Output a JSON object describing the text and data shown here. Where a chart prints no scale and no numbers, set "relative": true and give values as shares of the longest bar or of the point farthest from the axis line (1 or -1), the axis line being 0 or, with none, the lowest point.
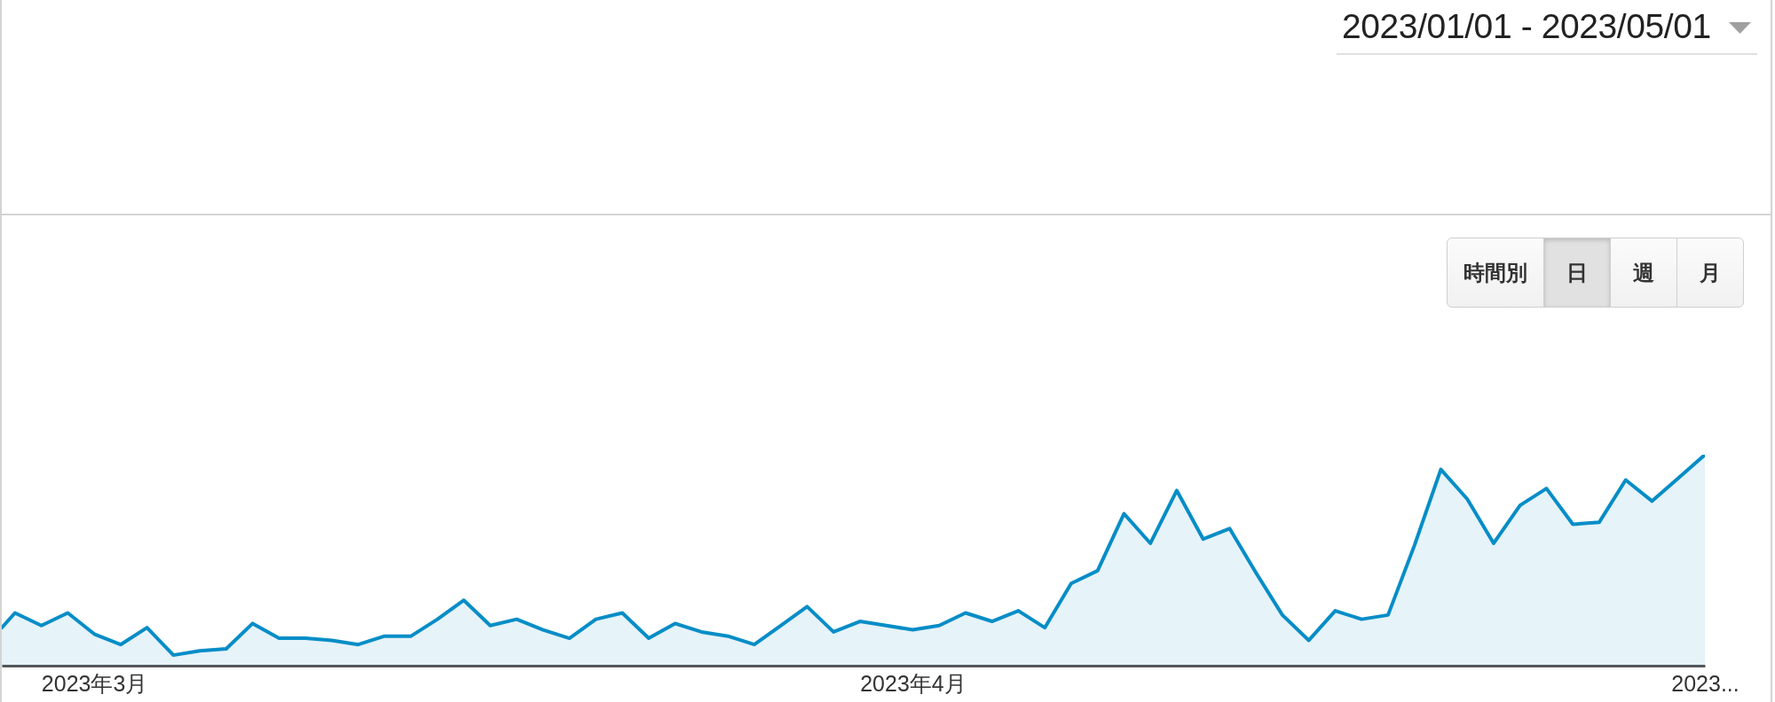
{
  "chart_data": {
    "type": "area",
    "relative": true,
    "x": [
      "2023-02-25T12:00",
      "2023-02-26",
      "2023-02-27",
      "2023-02-28",
      "2023-03-01",
      "2023-03-02",
      "2023-03-03",
      "2023-03-04",
      "2023-03-05",
      "2023-03-06",
      "2023-03-07",
      "2023-03-08",
      "2023-03-09",
      "2023-03-10",
      "2023-03-11",
      "2023-03-12",
      "2023-03-13",
      "2023-03-14",
      "2023-03-15",
      "2023-03-16",
      "2023-03-17",
      "2023-03-18",
      "2023-03-19",
      "2023-03-20",
      "2023-03-21",
      "2023-03-22",
      "2023-03-23",
      "2023-03-24",
      "2023-03-25",
      "2023-03-26",
      "2023-03-27",
      "2023-03-28",
      "2023-03-29",
      "2023-03-30",
      "2023-03-31",
      "2023-04-01",
      "2023-04-02",
      "2023-04-03",
      "2023-04-04",
      "2023-04-05",
      "2023-04-06",
      "2023-04-07",
      "2023-04-08",
      "2023-04-09",
      "2023-04-10",
      "2023-04-11",
      "2023-04-12",
      "2023-04-13",
      "2023-04-14",
      "2023-04-15",
      "2023-04-16",
      "2023-04-17",
      "2023-04-18",
      "2023-04-19",
      "2023-04-20",
      "2023-04-21",
      "2023-04-22",
      "2023-04-23",
      "2023-04-24",
      "2023-04-25",
      "2023-04-26",
      "2023-04-27",
      "2023-04-28",
      "2023-04-29",
      "2023-04-30",
      "2023-05-01"
    ],
    "series": [
      {
        "color": "#058dc7",
        "values": [
          0.18,
          0.25,
          0.19,
          0.25,
          0.15,
          0.1,
          0.18,
          0.05,
          0.07,
          0.08,
          0.2,
          0.13,
          0.13,
          0.12,
          0.1,
          0.14,
          0.14,
          0.22,
          0.31,
          0.19,
          0.22,
          0.17,
          0.13,
          0.22,
          0.25,
          0.13,
          0.2,
          0.16,
          0.14,
          0.1,
          0.19,
          0.28,
          0.16,
          0.21,
          0.19,
          0.17,
          0.19,
          0.25,
          0.21,
          0.26,
          0.18,
          0.39,
          0.45,
          0.72,
          0.58,
          0.83,
          0.6,
          0.65,
          0.44,
          0.24,
          0.12,
          0.26,
          0.22,
          0.24,
          0.57,
          0.93,
          0.79,
          0.58,
          0.76,
          0.84,
          0.67,
          0.68,
          0.88,
          0.78,
          0.89,
          1
        ]
      }
    ],
    "xlim": [
      "2023-02-25T12:00",
      "2023-05-01"
    ],
    "xticks": [
      {
        "value": "2023-03-01",
        "label": "2023年3月"
      },
      {
        "value": "2023-04-01",
        "label": "2023年4月"
      },
      {
        "value": "2023-05-01",
        "label": "2023..."
      }
    ],
    "annotations": [
      "2023/01/01 - 2023/05/01",
      "時間別",
      "日",
      "週",
      "月"
    ]
  }
}
